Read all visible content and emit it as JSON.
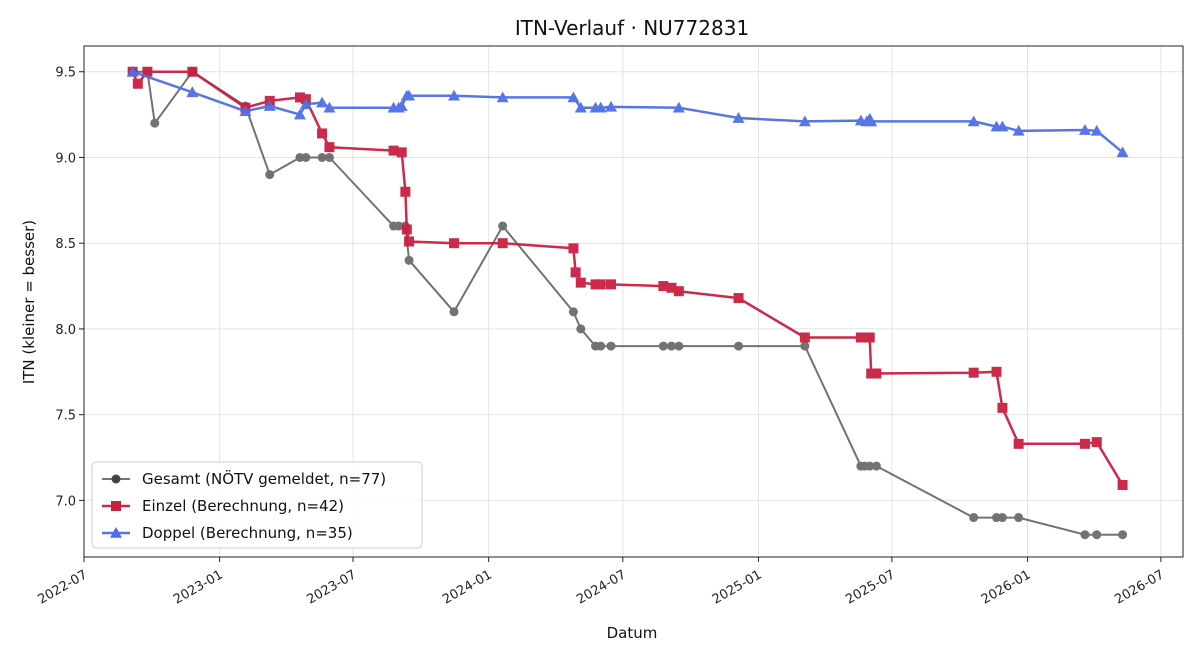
{
  "chart_data": {
    "type": "line",
    "title": "ITN-Verlauf · NU772831",
    "xlabel": "Datum",
    "ylabel": "ITN  (kleiner = besser)",
    "x_ticks": [
      "2022-07",
      "2023-01",
      "2023-07",
      "2024-01",
      "2024-07",
      "2025-01",
      "2025-07",
      "2026-01",
      "2026-07"
    ],
    "y_ticks": [
      "7.0",
      "7.5",
      "8.0",
      "8.5",
      "9.0",
      "9.5"
    ],
    "xlim": [
      "2022-07-01",
      "2026-07-31"
    ],
    "ylim": [
      6.67,
      9.65
    ],
    "grid": true,
    "legend_position": "lower-left",
    "series": [
      {
        "name": "Gesamt (NÖTV gemeldet, n=77)",
        "color": "#444444",
        "marker": "circle",
        "points": [
          [
            "2022-09-05",
            9.5
          ],
          [
            "2022-09-25",
            9.5
          ],
          [
            "2022-10-05",
            9.2
          ],
          [
            "2022-11-25",
            9.5
          ],
          [
            "2023-02-05",
            9.3
          ],
          [
            "2023-03-10",
            8.9
          ],
          [
            "2023-04-20",
            9.0
          ],
          [
            "2023-04-28",
            9.0
          ],
          [
            "2023-05-20",
            9.0
          ],
          [
            "2023-05-30",
            9.0
          ],
          [
            "2023-08-25",
            8.6
          ],
          [
            "2023-09-01",
            8.6
          ],
          [
            "2023-09-10",
            8.6
          ],
          [
            "2023-09-15",
            8.4
          ],
          [
            "2023-11-15",
            8.1
          ],
          [
            "2024-01-20",
            8.6
          ],
          [
            "2024-04-25",
            8.1
          ],
          [
            "2024-05-05",
            8.0
          ],
          [
            "2024-05-25",
            7.9
          ],
          [
            "2024-06-01",
            7.9
          ],
          [
            "2024-06-15",
            7.9
          ],
          [
            "2024-08-25",
            7.9
          ],
          [
            "2024-09-05",
            7.9
          ],
          [
            "2024-09-15",
            7.9
          ],
          [
            "2024-12-05",
            7.9
          ],
          [
            "2025-03-05",
            7.9
          ],
          [
            "2025-05-20",
            7.2
          ],
          [
            "2025-05-25",
            7.2
          ],
          [
            "2025-06-01",
            7.2
          ],
          [
            "2025-06-10",
            7.2
          ],
          [
            "2025-10-20",
            6.9
          ],
          [
            "2025-11-20",
            6.9
          ],
          [
            "2025-11-28",
            6.9
          ],
          [
            "2025-12-20",
            6.9
          ],
          [
            "2026-03-20",
            6.8
          ],
          [
            "2026-04-05",
            6.8
          ],
          [
            "2026-05-10",
            6.8
          ]
        ]
      },
      {
        "name": "Einzel (Berechnung, n=42)",
        "color": "#c9203f",
        "marker": "square",
        "points": [
          [
            "2022-09-05",
            9.5
          ],
          [
            "2022-09-12",
            9.43
          ],
          [
            "2022-09-25",
            9.5
          ],
          [
            "2022-11-25",
            9.5
          ],
          [
            "2023-02-05",
            9.29
          ],
          [
            "2023-03-10",
            9.33
          ],
          [
            "2023-04-20",
            9.35
          ],
          [
            "2023-04-28",
            9.34
          ],
          [
            "2023-05-20",
            9.14
          ],
          [
            "2023-05-30",
            9.06
          ],
          [
            "2023-08-25",
            9.04
          ],
          [
            "2023-09-05",
            9.03
          ],
          [
            "2023-09-10",
            8.8
          ],
          [
            "2023-09-12",
            8.58
          ],
          [
            "2023-09-15",
            8.51
          ],
          [
            "2023-11-15",
            8.5
          ],
          [
            "2024-01-20",
            8.5
          ],
          [
            "2024-04-25",
            8.47
          ],
          [
            "2024-04-28",
            8.33
          ],
          [
            "2024-05-05",
            8.27
          ],
          [
            "2024-05-25",
            8.26
          ],
          [
            "2024-06-01",
            8.26
          ],
          [
            "2024-06-15",
            8.26
          ],
          [
            "2024-08-25",
            8.25
          ],
          [
            "2024-09-05",
            8.24
          ],
          [
            "2024-09-15",
            8.22
          ],
          [
            "2024-12-05",
            8.18
          ],
          [
            "2025-03-05",
            7.95
          ],
          [
            "2025-05-20",
            7.95
          ],
          [
            "2025-05-25",
            7.95
          ],
          [
            "2025-06-01",
            7.95
          ],
          [
            "2025-06-03",
            7.74
          ],
          [
            "2025-06-10",
            7.74
          ],
          [
            "2025-10-20",
            7.745
          ],
          [
            "2025-11-20",
            7.75
          ],
          [
            "2025-11-28",
            7.54
          ],
          [
            "2025-12-20",
            7.33
          ],
          [
            "2026-03-20",
            7.33
          ],
          [
            "2026-04-05",
            7.34
          ],
          [
            "2026-05-10",
            7.09
          ]
        ]
      },
      {
        "name": "Doppel (Berechnung, n=35)",
        "color": "#4f6ee6",
        "marker": "triangle",
        "points": [
          [
            "2022-09-05",
            9.5
          ],
          [
            "2022-11-25",
            9.38
          ],
          [
            "2023-02-05",
            9.27
          ],
          [
            "2023-03-10",
            9.3
          ],
          [
            "2023-04-20",
            9.25
          ],
          [
            "2023-04-28",
            9.31
          ],
          [
            "2023-05-20",
            9.32
          ],
          [
            "2023-05-30",
            9.29
          ],
          [
            "2023-08-25",
            9.29
          ],
          [
            "2023-09-01",
            9.29
          ],
          [
            "2023-09-05",
            9.3
          ],
          [
            "2023-09-12",
            9.36
          ],
          [
            "2023-09-15",
            9.36
          ],
          [
            "2023-11-15",
            9.36
          ],
          [
            "2024-01-20",
            9.35
          ],
          [
            "2024-04-25",
            9.35
          ],
          [
            "2024-05-05",
            9.29
          ],
          [
            "2024-05-25",
            9.29
          ],
          [
            "2024-06-01",
            9.29
          ],
          [
            "2024-06-15",
            9.295
          ],
          [
            "2024-09-15",
            9.29
          ],
          [
            "2024-12-05",
            9.23
          ],
          [
            "2025-03-05",
            9.21
          ],
          [
            "2025-05-20",
            9.215
          ],
          [
            "2025-05-28",
            9.21
          ],
          [
            "2025-06-01",
            9.225
          ],
          [
            "2025-06-03",
            9.21
          ],
          [
            "2025-10-20",
            9.21
          ],
          [
            "2025-11-20",
            9.18
          ],
          [
            "2025-11-28",
            9.18
          ],
          [
            "2025-12-20",
            9.155
          ],
          [
            "2026-03-20",
            9.16
          ],
          [
            "2026-04-05",
            9.155
          ],
          [
            "2026-05-10",
            9.03
          ]
        ]
      }
    ]
  }
}
